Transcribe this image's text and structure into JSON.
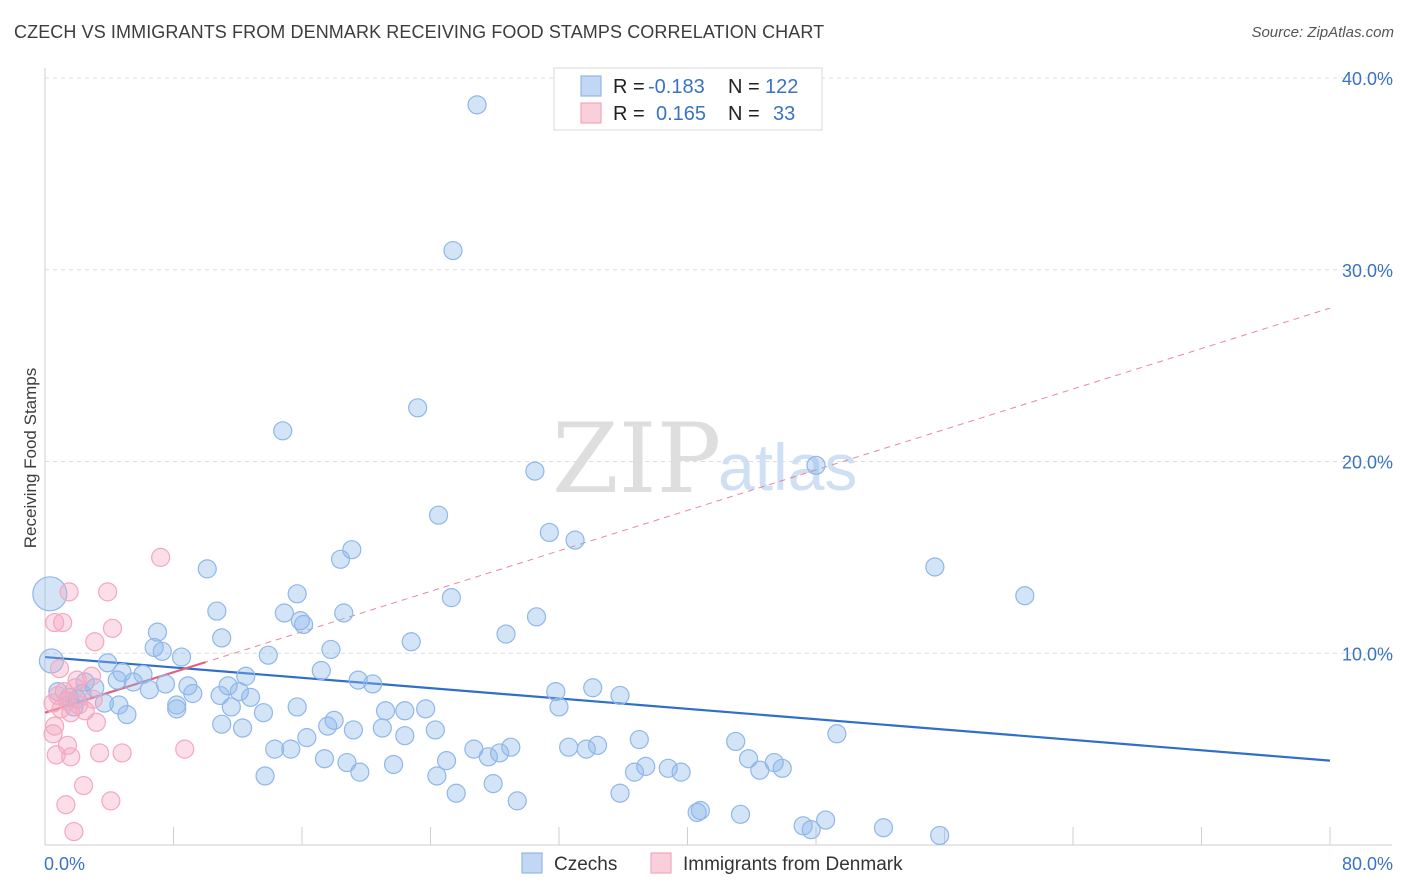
{
  "title": "CZECH VS IMMIGRANTS FROM DENMARK RECEIVING FOOD STAMPS CORRELATION CHART",
  "source": "Source: ZipAtlas.com",
  "watermark": {
    "part1": "ZIP",
    "part2": "atlas"
  },
  "colors": {
    "czech": "#8fb7ea",
    "czech_line": "#2f6fcb",
    "denmark": "#f4a7bf",
    "denmark_line": "#e0607e",
    "accent": "#3a72c4"
  },
  "legend": {
    "rows": [
      {
        "r_label": "R =",
        "r_value": "-0.183",
        "n_label": "N =",
        "n_value": "122"
      },
      {
        "r_label": "R =",
        "r_value": "0.165",
        "n_label": "N =",
        "n_value": "33"
      }
    ]
  },
  "chart_data": {
    "type": "scatter",
    "ylabel": "Receiving Food Stamps",
    "x_tick_labels": [
      "0.0%",
      "80.0%"
    ],
    "y_tick_labels": [
      "10.0%",
      "20.0%",
      "30.0%",
      "40.0%"
    ],
    "xlim": [
      0,
      80
    ],
    "ylim": [
      0,
      40
    ],
    "y_ticks": [
      10,
      20,
      30,
      40
    ],
    "legend_placement": "top-center",
    "grid": true,
    "series": [
      {
        "name": "Czechs",
        "r": -0.183,
        "n": 122,
        "trend": {
          "x0": 0,
          "y0": 9.8,
          "x1": 80,
          "y1": 4.4
        },
        "points": [
          [
            26.9,
            38.6
          ],
          [
            25.4,
            31.0
          ],
          [
            14.8,
            21.6
          ],
          [
            23.2,
            22.8
          ],
          [
            30.5,
            19.5
          ],
          [
            48.0,
            19.8
          ],
          [
            24.5,
            17.2
          ],
          [
            31.4,
            16.3
          ],
          [
            33.0,
            15.9
          ],
          [
            18.4,
            14.9
          ],
          [
            19.1,
            15.4
          ],
          [
            10.1,
            14.4
          ],
          [
            55.4,
            14.5
          ],
          [
            61.0,
            13.0
          ],
          [
            15.7,
            13.1
          ],
          [
            25.3,
            12.9
          ],
          [
            10.7,
            12.2
          ],
          [
            18.6,
            12.1
          ],
          [
            14.9,
            12.1
          ],
          [
            15.9,
            11.7
          ],
          [
            16.1,
            11.5
          ],
          [
            30.6,
            11.9
          ],
          [
            28.7,
            11.0
          ],
          [
            7.0,
            11.1
          ],
          [
            11.0,
            10.8
          ],
          [
            22.8,
            10.6
          ],
          [
            6.8,
            10.3
          ],
          [
            7.3,
            10.1
          ],
          [
            17.8,
            10.2
          ],
          [
            8.5,
            9.8
          ],
          [
            13.9,
            9.9
          ],
          [
            3.9,
            9.5
          ],
          [
            17.2,
            9.1
          ],
          [
            2.5,
            8.5
          ],
          [
            4.8,
            9.0
          ],
          [
            6.1,
            8.9
          ],
          [
            12.5,
            8.8
          ],
          [
            4.5,
            8.6
          ],
          [
            5.5,
            8.5
          ],
          [
            7.5,
            8.4
          ],
          [
            8.9,
            8.3
          ],
          [
            11.4,
            8.3
          ],
          [
            12.1,
            8.0
          ],
          [
            19.5,
            8.6
          ],
          [
            20.4,
            8.4
          ],
          [
            6.5,
            8.1
          ],
          [
            34.1,
            8.2
          ],
          [
            31.8,
            8.0
          ],
          [
            9.2,
            7.9
          ],
          [
            10.9,
            7.8
          ],
          [
            12.8,
            7.7
          ],
          [
            2.0,
            7.6
          ],
          [
            3.7,
            7.4
          ],
          [
            1.8,
            7.2
          ],
          [
            8.2,
            7.1
          ],
          [
            4.6,
            7.3
          ],
          [
            3.1,
            8.2
          ],
          [
            2.3,
            7.9
          ],
          [
            1.5,
            7.7
          ],
          [
            32.0,
            7.2
          ],
          [
            35.8,
            7.8
          ],
          [
            0.8,
            8.0
          ],
          [
            8.2,
            7.3
          ],
          [
            15.7,
            7.2
          ],
          [
            11.6,
            7.2
          ],
          [
            21.2,
            7.0
          ],
          [
            23.7,
            7.1
          ],
          [
            22.4,
            7.0
          ],
          [
            5.1,
            6.8
          ],
          [
            13.6,
            6.9
          ],
          [
            18.0,
            6.5
          ],
          [
            11.0,
            6.3
          ],
          [
            12.3,
            6.1
          ],
          [
            17.6,
            6.2
          ],
          [
            19.2,
            6.0
          ],
          [
            21.0,
            6.1
          ],
          [
            24.3,
            6.0
          ],
          [
            16.3,
            5.6
          ],
          [
            14.3,
            5.0
          ],
          [
            22.4,
            5.7
          ],
          [
            37.0,
            5.5
          ],
          [
            43.0,
            5.4
          ],
          [
            49.3,
            5.8
          ],
          [
            29.0,
            5.1
          ],
          [
            26.7,
            5.0
          ],
          [
            27.6,
            4.6
          ],
          [
            28.3,
            4.8
          ],
          [
            32.6,
            5.1
          ],
          [
            33.7,
            5.0
          ],
          [
            34.4,
            5.2
          ],
          [
            37.4,
            4.1
          ],
          [
            43.8,
            4.5
          ],
          [
            45.4,
            4.3
          ],
          [
            45.9,
            4.0
          ],
          [
            44.5,
            3.9
          ],
          [
            36.7,
            3.8
          ],
          [
            38.8,
            4.0
          ],
          [
            39.6,
            3.8
          ],
          [
            17.4,
            4.5
          ],
          [
            18.8,
            4.3
          ],
          [
            19.6,
            3.8
          ],
          [
            21.7,
            4.2
          ],
          [
            25.0,
            4.4
          ],
          [
            27.9,
            3.2
          ],
          [
            24.4,
            3.6
          ],
          [
            15.3,
            5.0
          ],
          [
            13.7,
            3.6
          ],
          [
            25.6,
            2.7
          ],
          [
            29.4,
            2.3
          ],
          [
            35.8,
            2.7
          ],
          [
            43.3,
            1.6
          ],
          [
            40.6,
            1.7
          ],
          [
            48.6,
            1.3
          ],
          [
            47.2,
            1.0
          ],
          [
            47.7,
            0.8
          ],
          [
            52.2,
            0.9
          ],
          [
            55.7,
            0.5
          ],
          [
            40.8,
            1.8
          ],
          [
            0.4,
            9.6
          ],
          [
            0.3,
            13.1
          ]
        ]
      },
      {
        "name": "Immigrants from Denmark",
        "r": 0.165,
        "n": 33,
        "trend": {
          "x0": 0,
          "y0": 6.9,
          "x1": 80,
          "y1": 28.0
        },
        "points": [
          [
            7.2,
            15.0
          ],
          [
            1.5,
            13.2
          ],
          [
            3.9,
            13.2
          ],
          [
            0.6,
            11.6
          ],
          [
            4.2,
            11.3
          ],
          [
            3.1,
            10.6
          ],
          [
            2.0,
            8.6
          ],
          [
            2.9,
            8.8
          ],
          [
            1.2,
            8.0
          ],
          [
            0.8,
            7.8
          ],
          [
            1.4,
            7.5
          ],
          [
            0.5,
            7.4
          ],
          [
            2.1,
            7.3
          ],
          [
            1.0,
            7.1
          ],
          [
            1.6,
            6.9
          ],
          [
            3.2,
            6.4
          ],
          [
            0.6,
            6.2
          ],
          [
            0.5,
            5.8
          ],
          [
            1.4,
            5.2
          ],
          [
            0.7,
            4.7
          ],
          [
            1.6,
            4.6
          ],
          [
            3.4,
            4.8
          ],
          [
            4.8,
            4.8
          ],
          [
            8.7,
            5.0
          ],
          [
            2.4,
            3.1
          ],
          [
            4.1,
            2.3
          ],
          [
            1.3,
            2.1
          ],
          [
            1.8,
            0.7
          ],
          [
            1.1,
            11.6
          ],
          [
            0.9,
            9.2
          ],
          [
            2.5,
            7.0
          ],
          [
            1.9,
            8.2
          ],
          [
            3.0,
            7.6
          ]
        ]
      }
    ]
  }
}
